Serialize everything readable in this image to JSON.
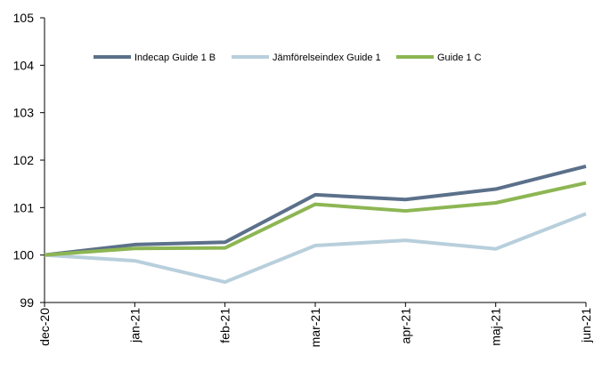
{
  "chart_data": {
    "type": "line",
    "categories": [
      "dec-20",
      "jan-21",
      "feb-21",
      "mar-21",
      "apr-21",
      "maj-21",
      "jun-21"
    ],
    "series": [
      {
        "name": "Indecap Guide 1 B",
        "color": "#5b708a",
        "values": [
          100,
          100.22,
          100.27,
          101.27,
          101.17,
          101.39,
          101.87
        ]
      },
      {
        "name": "Jämförelseindex Guide 1",
        "color": "#b8cfdc",
        "values": [
          100,
          99.88,
          99.43,
          100.2,
          100.31,
          100.13,
          100.87
        ]
      },
      {
        "name": "Guide 1 C",
        "color": "#8db653",
        "values": [
          100,
          100.14,
          100.15,
          101.07,
          100.93,
          101.1,
          101.52
        ]
      }
    ],
    "ylim": [
      99,
      105
    ],
    "yticks": [
      99,
      100,
      101,
      102,
      103,
      104,
      105
    ],
    "legend": "top"
  }
}
